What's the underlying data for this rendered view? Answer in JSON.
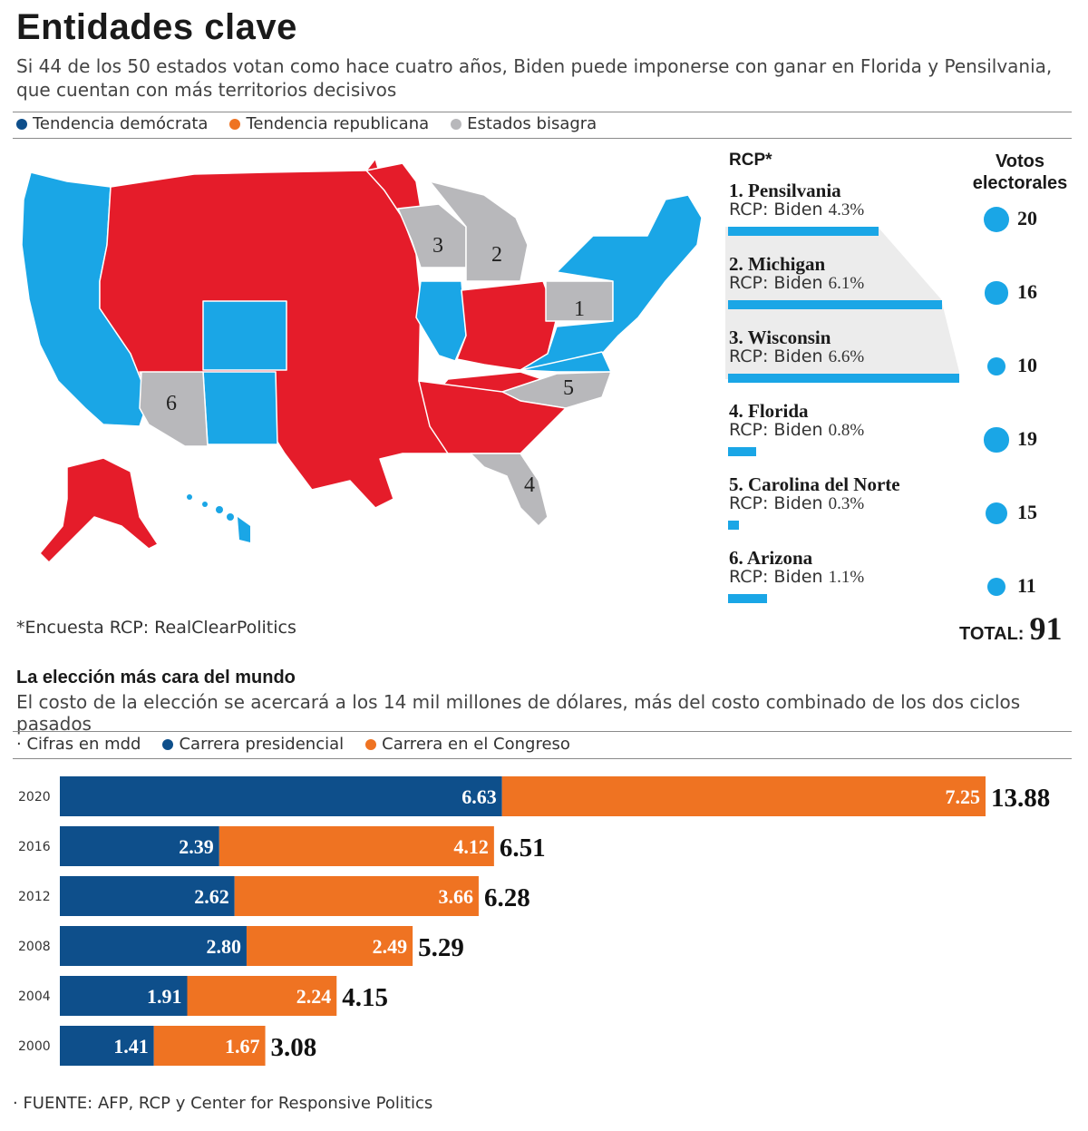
{
  "header": {
    "title": "Entidades clave",
    "subtitle": "Si 44 de los 50 estados votan como hace cuatro años, Biden puede imponerse con ganar en Florida y Pensilvania, que cuentan con más territorios decisivos"
  },
  "legend": {
    "items": [
      {
        "label": "Tendencia demócrata",
        "color": "#0e4f8b"
      },
      {
        "label": "Tendencia republicana",
        "color": "#ef7322"
      },
      {
        "label": "Estados bisagra",
        "color": "#b8b8bb"
      }
    ]
  },
  "map": {
    "colors": {
      "dem": "#1aa6e6",
      "rep": "#e51c2a",
      "swing": "#b8b8bb"
    },
    "note": "*Encuesta RCP: RealClearPolitics",
    "swing_numbers": [
      "1",
      "2",
      "3",
      "4",
      "5",
      "6"
    ]
  },
  "rcp": {
    "header": "RCP*",
    "votes_header_line1": "Votos",
    "votes_header_line2": "electorales",
    "bar_color": "#1aa6e6",
    "states": [
      {
        "name": "1. Pensilvania",
        "rcp_prefix": "RCP: Biden ",
        "margin": "4.3%",
        "value": 4.3,
        "votes": "20",
        "votes_value": 20
      },
      {
        "name": "2. Michigan",
        "rcp_prefix": "RCP: Biden ",
        "margin": "6.1%",
        "value": 6.1,
        "votes": "16",
        "votes_value": 16
      },
      {
        "name": "3. Wisconsin",
        "rcp_prefix": "RCP: Biden ",
        "margin": "6.6%",
        "value": 6.6,
        "votes": "10",
        "votes_value": 10
      },
      {
        "name": "4. Florida",
        "rcp_prefix": "RCP: Biden ",
        "margin": "0.8%",
        "value": 0.8,
        "votes": "19",
        "votes_value": 19
      },
      {
        "name": "5. Carolina del Norte",
        "rcp_prefix": "RCP: Biden ",
        "margin": "0.3%",
        "value": 0.3,
        "votes": "15",
        "votes_value": 15
      },
      {
        "name": "6. Arizona",
        "rcp_prefix": "RCP: Biden ",
        "margin": "1.1%",
        "value": 1.1,
        "votes": "11",
        "votes_value": 11
      }
    ],
    "total_label": "TOTAL:",
    "total_value": "91"
  },
  "cost": {
    "title": "La elección más cara del mundo",
    "subtitle": "El costo de la elección se acercará a los 14 mil millones de dólares, más del costo combinado de los dos ciclos pasados",
    "legend_units": "· Cifras en mdd",
    "legend_series": [
      "Carrera presidencial",
      "Carrera en el Congreso"
    ]
  },
  "chart_data": {
    "type": "bar",
    "stacked": true,
    "orientation": "horizontal",
    "categories": [
      "2020",
      "2016",
      "2012",
      "2008",
      "2004",
      "2000"
    ],
    "series": [
      {
        "name": "Carrera presidencial",
        "color": "#0e4f8b",
        "values": [
          6.63,
          2.39,
          2.62,
          2.8,
          1.91,
          1.41
        ],
        "labels": [
          "6.63",
          "2.39",
          "2.62",
          "2.80",
          "1.91",
          "1.41"
        ]
      },
      {
        "name": "Carrera en el Congreso",
        "color": "#ef7322",
        "values": [
          7.25,
          4.12,
          3.66,
          2.49,
          2.24,
          1.67
        ],
        "labels": [
          "7.25",
          "4.12",
          "3.66",
          "2.49",
          "2.24",
          "1.67"
        ]
      }
    ],
    "totals": [
      "13.88",
      "6.51",
      "6.28",
      "5.29",
      "4.15",
      "3.08"
    ],
    "xlim": [
      0,
      13.88
    ],
    "grid": false
  },
  "footer": {
    "source_label": "· FUENTE:",
    "source_text": " AFP, RCP y Center for Responsive Politics"
  }
}
